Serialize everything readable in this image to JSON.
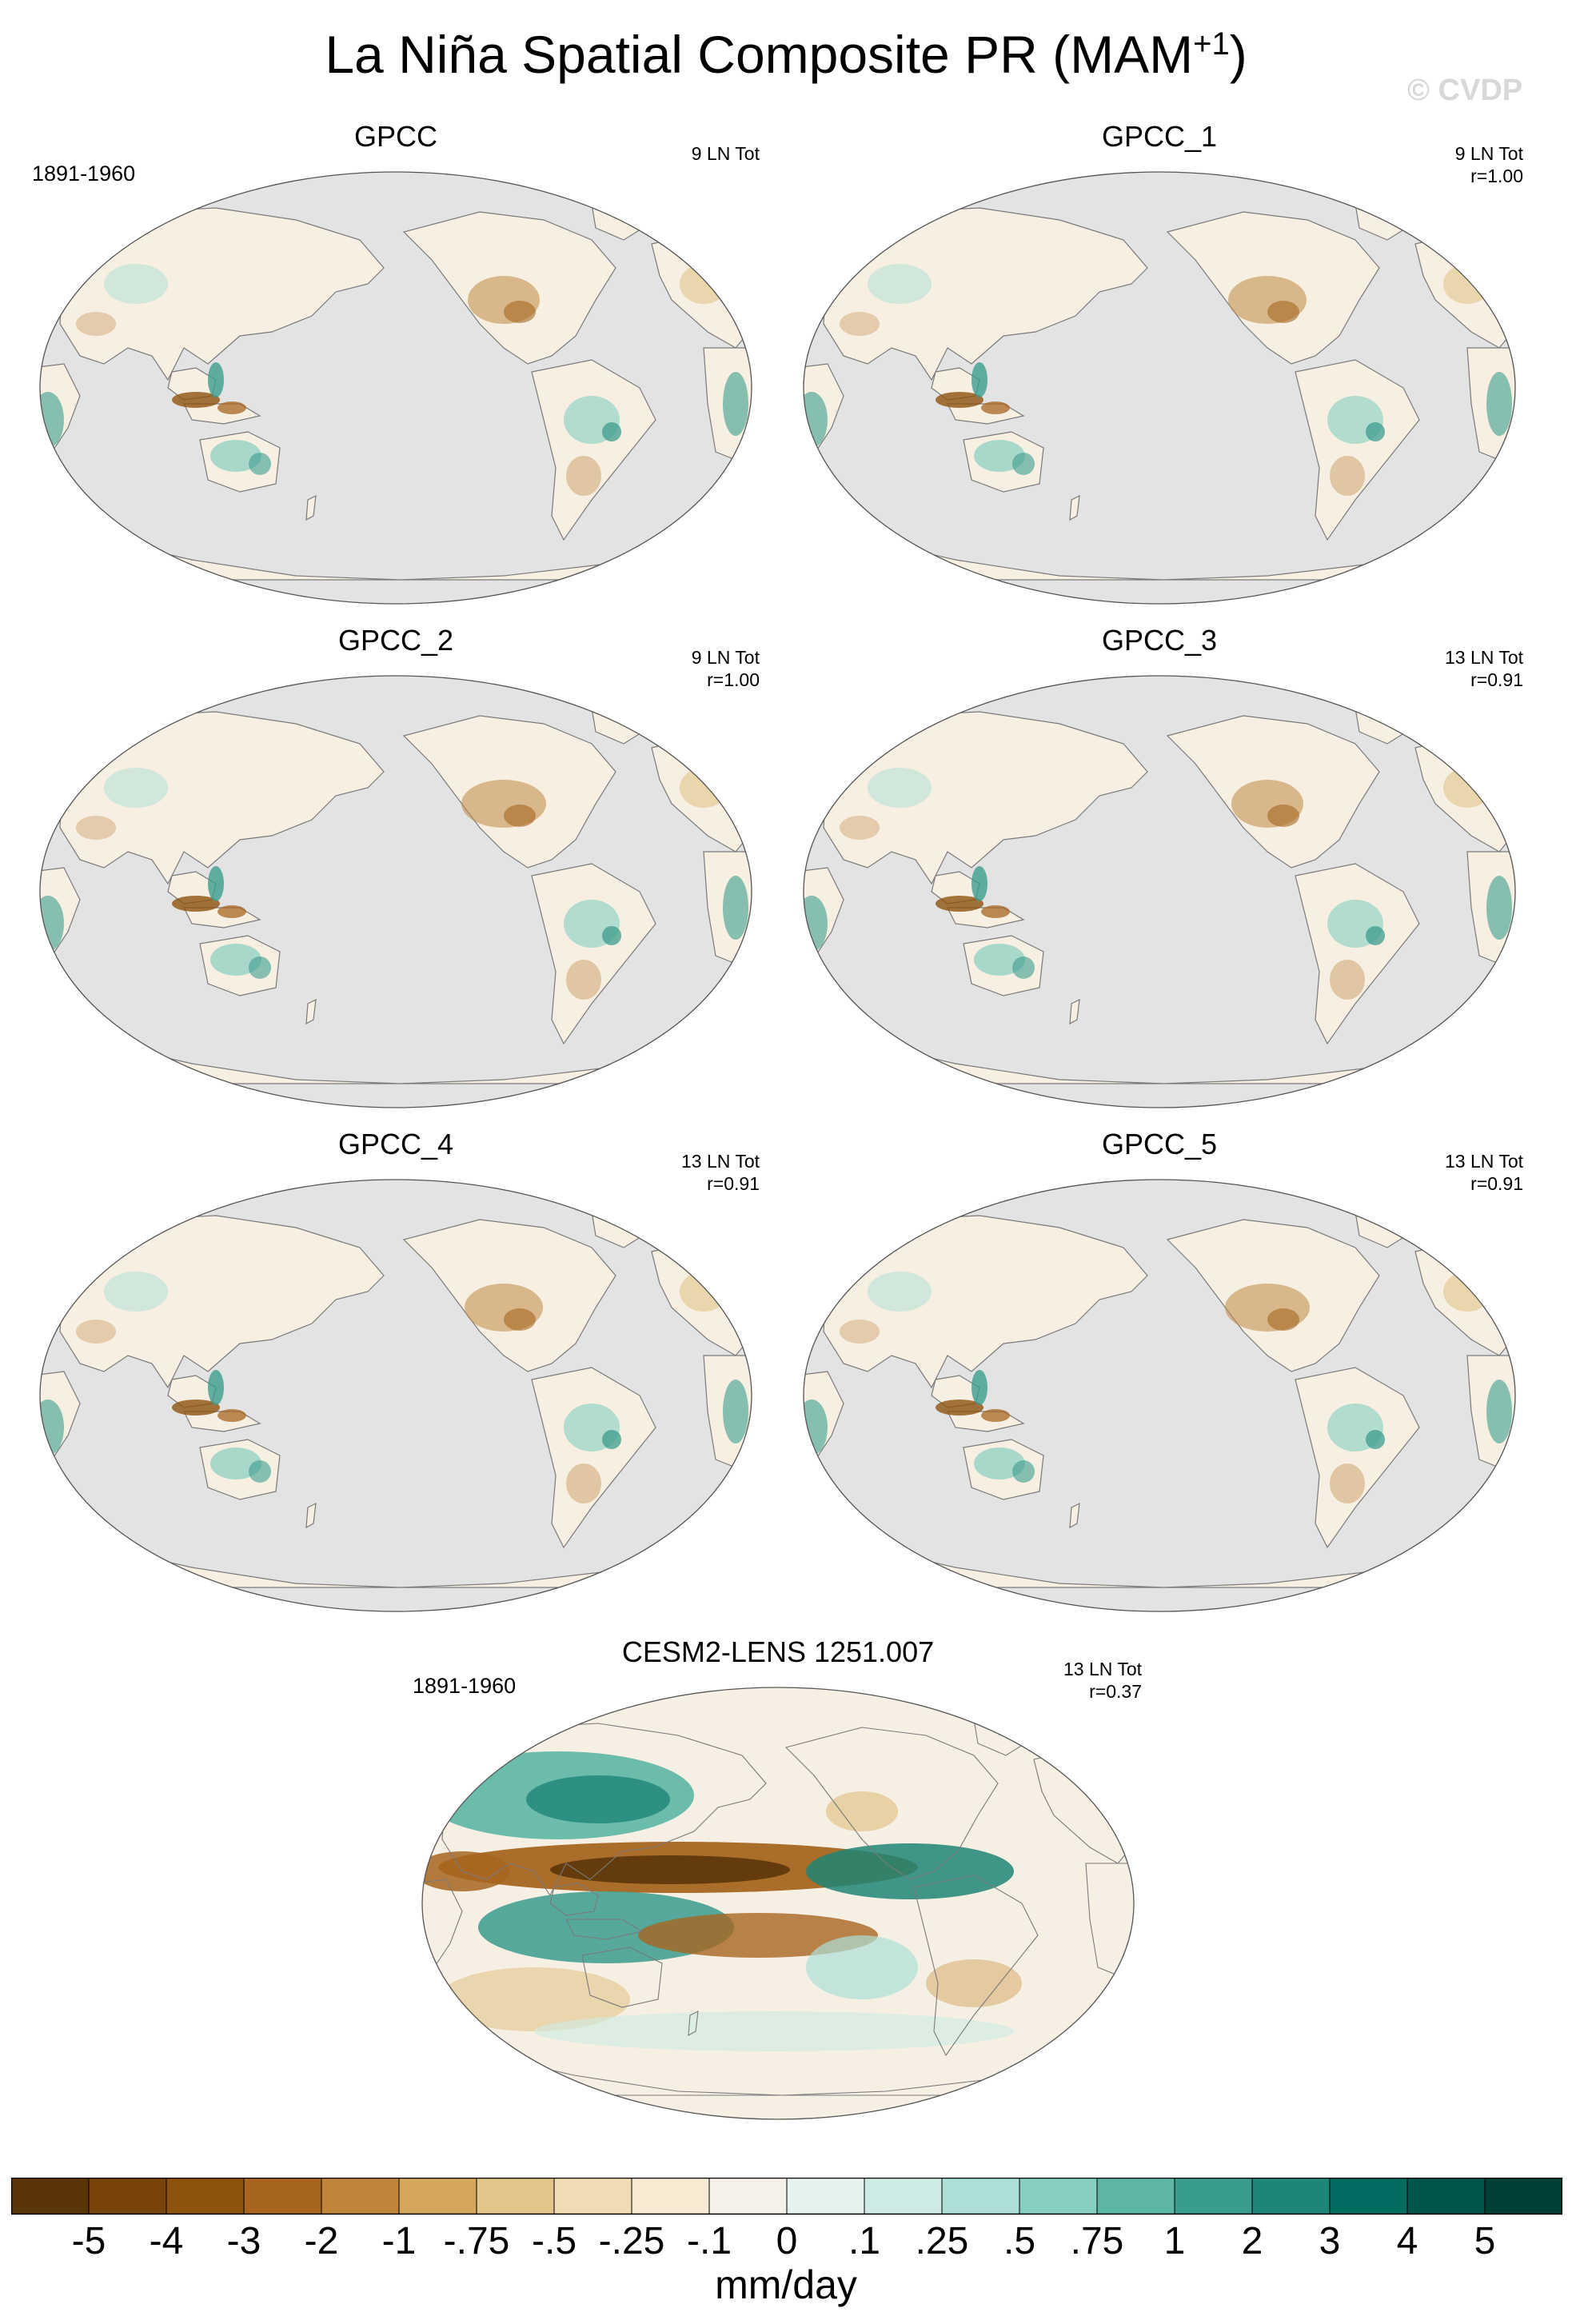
{
  "title": "La Niña Spatial Composite PR (MAM",
  "title_superscript": "+1",
  "title_suffix": ")",
  "watermark": "© CVDP",
  "panels": [
    {
      "title": "GPCC",
      "period": "1891-1960",
      "stats": [
        "9 LN Tot"
      ],
      "kind": "obs"
    },
    {
      "title": "GPCC_1",
      "period": "",
      "stats": [
        "9 LN Tot",
        "r=1.00"
      ],
      "kind": "obs"
    },
    {
      "title": "GPCC_2",
      "period": "",
      "stats": [
        "9 LN Tot",
        "r=1.00"
      ],
      "kind": "obs"
    },
    {
      "title": "GPCC_3",
      "period": "",
      "stats": [
        "13 LN Tot",
        "r=0.91"
      ],
      "kind": "obs"
    },
    {
      "title": "GPCC_4",
      "period": "",
      "stats": [
        "13 LN Tot",
        "r=0.91"
      ],
      "kind": "obs"
    },
    {
      "title": "GPCC_5",
      "period": "",
      "stats": [
        "13 LN Tot",
        "r=0.91"
      ],
      "kind": "obs"
    },
    {
      "title": "CESM2-LENS 1251.007",
      "period": "1891-1960",
      "stats": [
        "13 LN Tot",
        "r=0.37"
      ],
      "kind": "model"
    }
  ],
  "colorbar": {
    "labels": [
      "-5",
      "-4",
      "-3",
      "-2",
      "-1",
      "-.75",
      "-.5",
      "-.25",
      "-.1",
      "0",
      ".1",
      ".25",
      ".5",
      ".75",
      "1",
      "2",
      "3",
      "4",
      "5"
    ],
    "colors": [
      "#5b3509",
      "#774309",
      "#8e520f",
      "#a76520",
      "#c0853a",
      "#d4a65e",
      "#e3c589",
      "#efdcb2",
      "#f6ebd2",
      "#f5f1ea",
      "#e6f2ee",
      "#cdebe4",
      "#ace0d6",
      "#86cfc0",
      "#5db6a5",
      "#3a9c8d",
      "#1f8576",
      "#006b5e",
      "#00554a",
      "#003f35"
    ],
    "units": "mm/day"
  },
  "colors": {
    "ocean_obs": "#e3e3e3",
    "land_obs": "#f6efe2",
    "coast": "#7a7a7a",
    "brown": "#c08a44",
    "teal": "#3c9c8f"
  }
}
